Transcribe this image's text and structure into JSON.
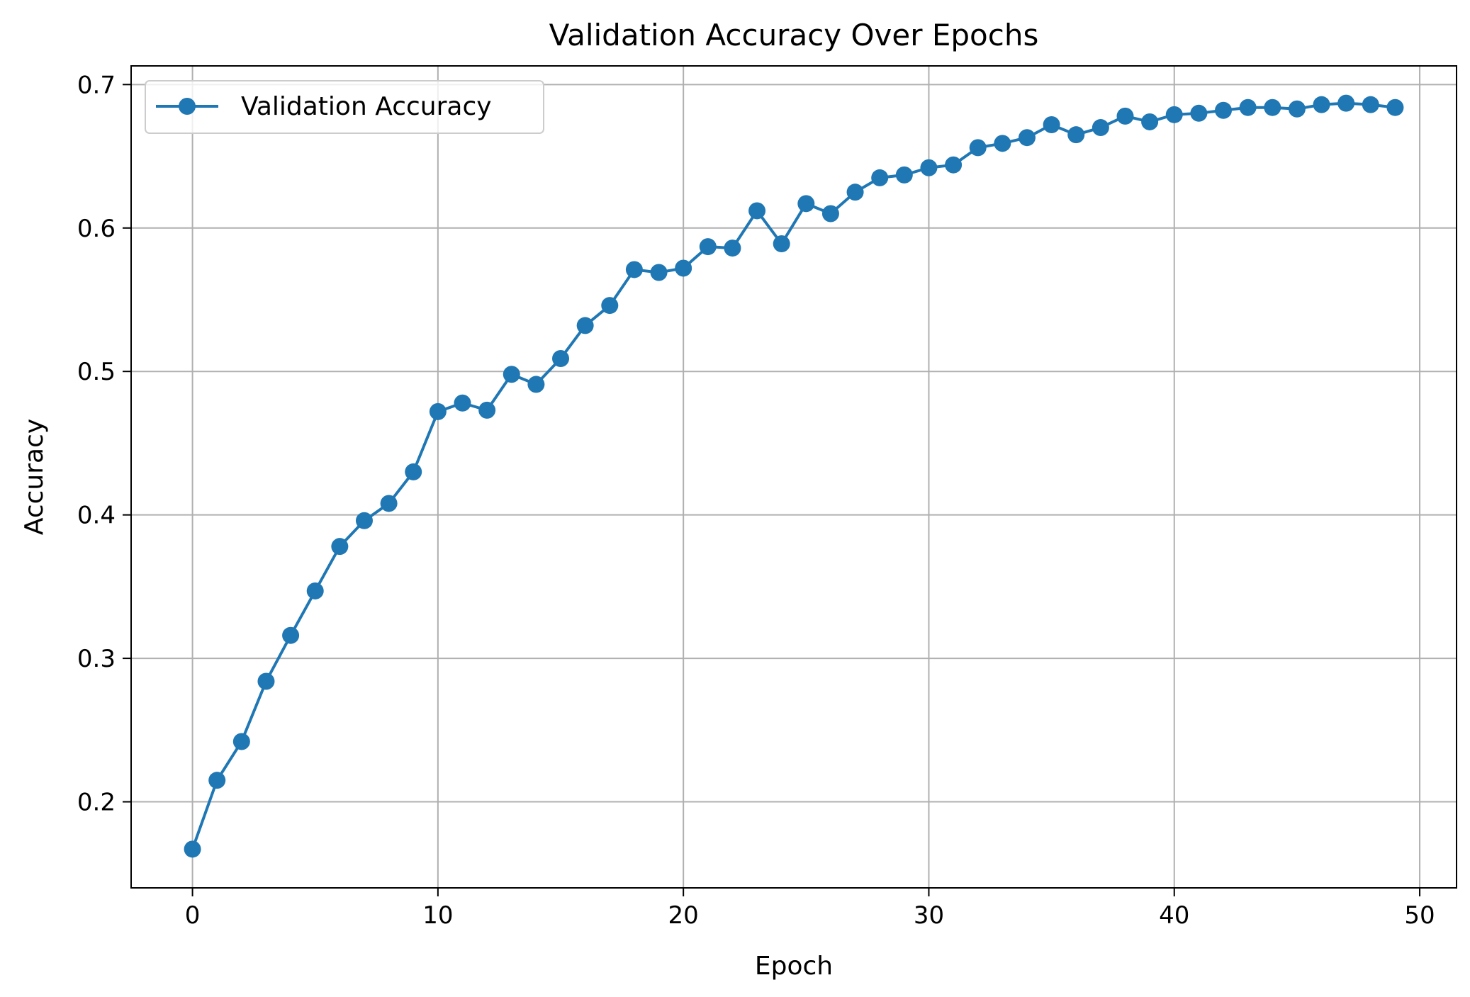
{
  "chart_data": {
    "type": "line",
    "title": "Validation Accuracy Over Epochs",
    "xlabel": "Epoch",
    "ylabel": "Accuracy",
    "xlim": [
      -2.5,
      51.5
    ],
    "ylim": [
      0.14,
      0.713
    ],
    "xticks": [
      0,
      10,
      20,
      30,
      40,
      50
    ],
    "yticks": [
      0.2,
      0.3,
      0.4,
      0.5,
      0.6,
      0.7
    ],
    "grid": true,
    "legend_position": "top-left",
    "series": [
      {
        "name": "Validation Accuracy",
        "color": "#1f77b4",
        "marker": "circle",
        "x": [
          0,
          1,
          2,
          3,
          4,
          5,
          6,
          7,
          8,
          9,
          10,
          11,
          12,
          13,
          14,
          15,
          16,
          17,
          18,
          19,
          20,
          21,
          22,
          23,
          24,
          25,
          26,
          27,
          28,
          29,
          30,
          31,
          32,
          33,
          34,
          35,
          36,
          37,
          38,
          39,
          40,
          41,
          42,
          43,
          44,
          45,
          46,
          47,
          48,
          49
        ],
        "y": [
          0.167,
          0.215,
          0.242,
          0.284,
          0.316,
          0.347,
          0.378,
          0.396,
          0.408,
          0.43,
          0.472,
          0.478,
          0.473,
          0.498,
          0.491,
          0.509,
          0.532,
          0.546,
          0.571,
          0.569,
          0.572,
          0.587,
          0.586,
          0.612,
          0.589,
          0.617,
          0.61,
          0.625,
          0.635,
          0.637,
          0.642,
          0.644,
          0.656,
          0.659,
          0.663,
          0.672,
          0.665,
          0.67,
          0.678,
          0.674,
          0.679,
          0.68,
          0.682,
          0.684,
          0.684,
          0.683,
          0.686,
          0.687,
          0.686,
          0.684
        ]
      }
    ]
  }
}
